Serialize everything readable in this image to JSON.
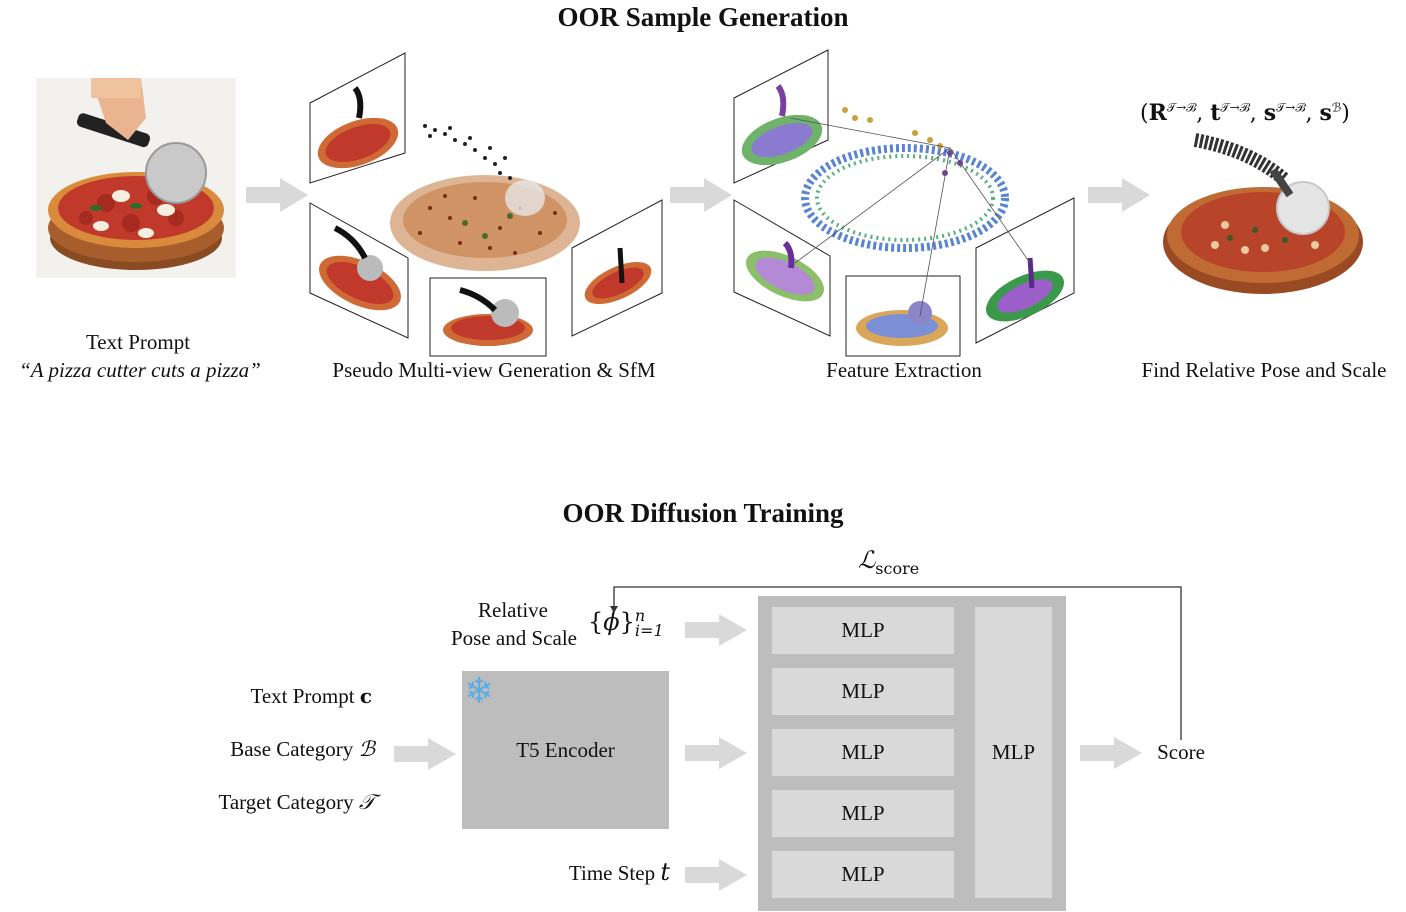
{
  "top": {
    "title": "OOR Sample Generation",
    "stage1": {
      "caption": "Text Prompt",
      "prompt": "“A pizza cutter cuts a pizza”"
    },
    "stage2": {
      "caption": "Pseudo Multi-view Generation & SfM"
    },
    "stage3": {
      "caption": "Feature Extraction"
    },
    "stage4": {
      "caption": "Find Relative Pose and Scale",
      "formula": {
        "R": "R",
        "t": "t",
        "s": "s",
        "sup": "𝒯→ℬ",
        "supB": "ℬ"
      }
    }
  },
  "bottom": {
    "title": "OOR Diffusion Training",
    "loss": {
      "symbol": "ℒ",
      "sub": "score"
    },
    "relative": {
      "line1": "Relative",
      "line2": "Pose and Scale",
      "phi": "ϕ",
      "sup": "n",
      "sub": "i=1"
    },
    "inputs": [
      {
        "label": "Text Prompt",
        "sym": "c"
      },
      {
        "label": "Base Category",
        "sym": "ℬ"
      },
      {
        "label": "Target Category",
        "sym": "𝒯"
      }
    ],
    "encoder": {
      "label": "T5 Encoder",
      "icon": "❄"
    },
    "timestep": {
      "label": "Time Step",
      "sym": "t"
    },
    "mlp_labels": [
      "MLP",
      "MLP",
      "MLP",
      "MLP",
      "MLP"
    ],
    "big_mlp": "MLP",
    "output": "Score"
  },
  "colors": {
    "arrow": "#d9d9d9",
    "panel": "#bdbdbd",
    "mlp": "#d9d9d9",
    "encoder": "#bdbdbd",
    "snow": "#5aaee8"
  }
}
